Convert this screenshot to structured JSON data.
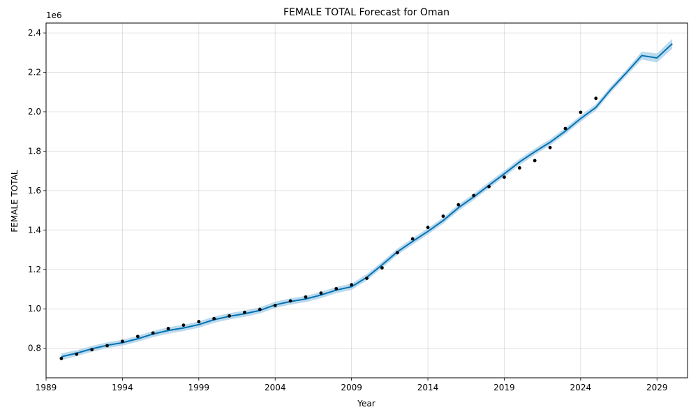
{
  "chart_data": {
    "type": "line",
    "title": "FEMALE TOTAL Forecast for Oman",
    "xlabel": "Year",
    "ylabel": "FEMALE TOTAL",
    "y_offset_label": "1e6",
    "xlim": [
      1989.0,
      2031.0
    ],
    "ylim": [
      650000,
      2450000
    ],
    "x_ticks": [
      1989,
      1994,
      1999,
      2004,
      2009,
      2014,
      2019,
      2024,
      2029
    ],
    "y_ticks": [
      800000,
      1000000,
      1200000,
      1400000,
      1600000,
      1800000,
      2000000,
      2200000,
      2400000
    ],
    "y_tick_labels": [
      "0.8",
      "1.0",
      "1.2",
      "1.4",
      "1.6",
      "1.8",
      "2.0",
      "2.2",
      "2.4"
    ],
    "grid": true,
    "colors": {
      "line": "#0072b2",
      "band": "#a6cde8",
      "points": "#000000"
    },
    "observed": {
      "x": [
        1990,
        1991,
        1992,
        1993,
        1994,
        1995,
        1996,
        1997,
        1998,
        1999,
        2000,
        2001,
        2002,
        2003,
        2004,
        2005,
        2006,
        2007,
        2008,
        2009,
        2010,
        2011,
        2012,
        2013,
        2014,
        2015,
        2016,
        2017,
        2018,
        2019,
        2020,
        2021,
        2022,
        2023,
        2024,
        2025
      ],
      "y": [
        748000,
        770000,
        793000,
        813000,
        835000,
        860000,
        877000,
        900000,
        917000,
        935000,
        950000,
        964000,
        982000,
        997000,
        1017000,
        1040000,
        1060000,
        1080000,
        1102000,
        1122000,
        1155000,
        1208000,
        1285000,
        1355000,
        1413000,
        1470000,
        1528000,
        1575000,
        1620000,
        1668000,
        1715000,
        1752000,
        1818000,
        1915000,
        1997000,
        2068000
      ]
    },
    "forecast": {
      "x": [
        1990,
        1991,
        1992,
        1993,
        1994,
        1995,
        1996,
        1997,
        1998,
        1999,
        2000,
        2001,
        2002,
        2003,
        2004,
        2005,
        2006,
        2007,
        2008,
        2009,
        2010,
        2011,
        2012,
        2013,
        2014,
        2015,
        2016,
        2017,
        2018,
        2019,
        2020,
        2021,
        2022,
        2023,
        2024,
        2025,
        2026,
        2027,
        2028,
        2029,
        2030
      ],
      "yhat": [
        757000,
        775000,
        797000,
        815000,
        828000,
        848000,
        872000,
        890000,
        903000,
        920000,
        945000,
        962000,
        975000,
        992000,
        1020000,
        1037000,
        1050000,
        1070000,
        1095000,
        1112000,
        1160000,
        1223000,
        1289000,
        1342000,
        1393000,
        1448000,
        1513000,
        1568000,
        1627000,
        1685000,
        1745000,
        1797000,
        1845000,
        1902000,
        1965000,
        2022000,
        2115000,
        2198000,
        2285000,
        2273000,
        2345000
      ],
      "lower": [
        740000,
        760000,
        782000,
        800000,
        813000,
        833000,
        856000,
        874000,
        887000,
        904000,
        929000,
        946000,
        959000,
        976000,
        1004000,
        1021000,
        1034000,
        1054000,
        1079000,
        1096000,
        1144000,
        1207000,
        1273000,
        1326000,
        1377000,
        1432000,
        1497000,
        1552000,
        1611000,
        1669000,
        1729000,
        1781000,
        1829000,
        1886000,
        1949000,
        2006000,
        2099000,
        2182000,
        2265000,
        2250000,
        2320000
      ],
      "upper": [
        774000,
        790000,
        812000,
        830000,
        843000,
        863000,
        888000,
        906000,
        919000,
        936000,
        961000,
        978000,
        991000,
        1008000,
        1036000,
        1053000,
        1066000,
        1086000,
        1111000,
        1128000,
        1176000,
        1239000,
        1305000,
        1358000,
        1409000,
        1464000,
        1529000,
        1584000,
        1643000,
        1701000,
        1761000,
        1813000,
        1861000,
        1918000,
        1981000,
        2038000,
        2131000,
        2214000,
        2305000,
        2296000,
        2370000
      ]
    }
  }
}
